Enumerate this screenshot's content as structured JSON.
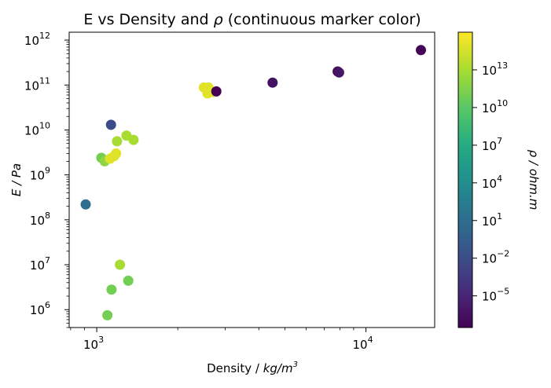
{
  "chart_data": {
    "type": "scatter",
    "title": "E vs Density and ρ (continuous marker color)",
    "title_parts": {
      "prefix": "E vs Density and ",
      "symbol": "ρ",
      "suffix": " (continuous marker color)"
    },
    "xlabel": "Density / kg/m³",
    "xlabel_parts": {
      "text": "Density / ",
      "unit_base": "kg/m",
      "unit_sup": "3"
    },
    "ylabel": "E / Pa",
    "x_scale": "log",
    "y_scale": "log",
    "xlim": [
      790,
      18000
    ],
    "ylim": [
      400000,
      1500000000000
    ],
    "x_ticks": [
      {
        "base": "10",
        "exp": "3",
        "value": 1000
      },
      {
        "base": "10",
        "exp": "4",
        "value": 10000
      }
    ],
    "y_ticks": [
      {
        "base": "10",
        "exp": "6",
        "value": 1000000
      },
      {
        "base": "10",
        "exp": "7",
        "value": 10000000
      },
      {
        "base": "10",
        "exp": "8",
        "value": 100000000
      },
      {
        "base": "10",
        "exp": "9",
        "value": 1000000000
      },
      {
        "base": "10",
        "exp": "10",
        "value": 10000000000
      },
      {
        "base": "10",
        "exp": "11",
        "value": 100000000000
      },
      {
        "base": "10",
        "exp": "12",
        "value": 1000000000000
      }
    ],
    "colorbar": {
      "label": "ρ / ohm.m",
      "label_parts": {
        "symbol": "ρ",
        "rest": " / ohm.m"
      },
      "scale": "log",
      "colormap": "viridis",
      "range": [
        3e-08,
        1e+16
      ],
      "ticks": [
        {
          "base": "10",
          "exp": "−5",
          "value": 1e-05
        },
        {
          "base": "10",
          "exp": "−2",
          "value": 0.01
        },
        {
          "base": "10",
          "exp": "1",
          "value": 10
        },
        {
          "base": "10",
          "exp": "4",
          "value": 10000.0
        },
        {
          "base": "10",
          "exp": "7",
          "value": 10000000.0
        },
        {
          "base": "10",
          "exp": "10",
          "value": 10000000000.0
        },
        {
          "base": "10",
          "exp": "13",
          "value": 10000000000000.0
        }
      ]
    },
    "points": [
      {
        "x": 910,
        "y": 220000000,
        "rho": 10.0
      },
      {
        "x": 1130,
        "y": 13000000000,
        "rho": 0.01
      },
      {
        "x": 1040,
        "y": 2400000000,
        "rho": 100000000000.0
      },
      {
        "x": 1070,
        "y": 2000000000,
        "rho": 1000000000000.0
      },
      {
        "x": 1120,
        "y": 2300000000,
        "rho": 1000000000000000.0
      },
      {
        "x": 1160,
        "y": 2600000000,
        "rho": 1000000000000000.0
      },
      {
        "x": 1180,
        "y": 3000000000,
        "rho": 1000000000000000.0
      },
      {
        "x": 1190,
        "y": 5600000000,
        "rho": 10000000000000.0
      },
      {
        "x": 1290,
        "y": 7500000000,
        "rho": 10000000000000.0
      },
      {
        "x": 1370,
        "y": 6000000000,
        "rho": 10000000000000.0
      },
      {
        "x": 1220,
        "y": 10000000,
        "rho": 10000000000000.0
      },
      {
        "x": 1135,
        "y": 2800000,
        "rho": 100000000000.0
      },
      {
        "x": 1310,
        "y": 4400000,
        "rho": 100000000000.0
      },
      {
        "x": 1095,
        "y": 750000,
        "rho": 100000000000.0
      },
      {
        "x": 2500,
        "y": 88000000000,
        "rho": 1000000000000000.0
      },
      {
        "x": 2600,
        "y": 88000000000,
        "rho": 1000000000000000.0
      },
      {
        "x": 2580,
        "y": 65000000000,
        "rho": 1000000000000000.0
      },
      {
        "x": 2700,
        "y": 70000000000,
        "rho": 1000000000000000.0
      },
      {
        "x": 2780,
        "y": 72000000000,
        "rho": 2e-08
      },
      {
        "x": 4500,
        "y": 113000000000,
        "rho": 4e-07
      },
      {
        "x": 7850,
        "y": 200000000000,
        "rho": 1e-07
      },
      {
        "x": 7950,
        "y": 190000000000,
        "rho": 7e-07
      },
      {
        "x": 16000,
        "y": 600000000000,
        "rho": 5e-08
      }
    ]
  }
}
